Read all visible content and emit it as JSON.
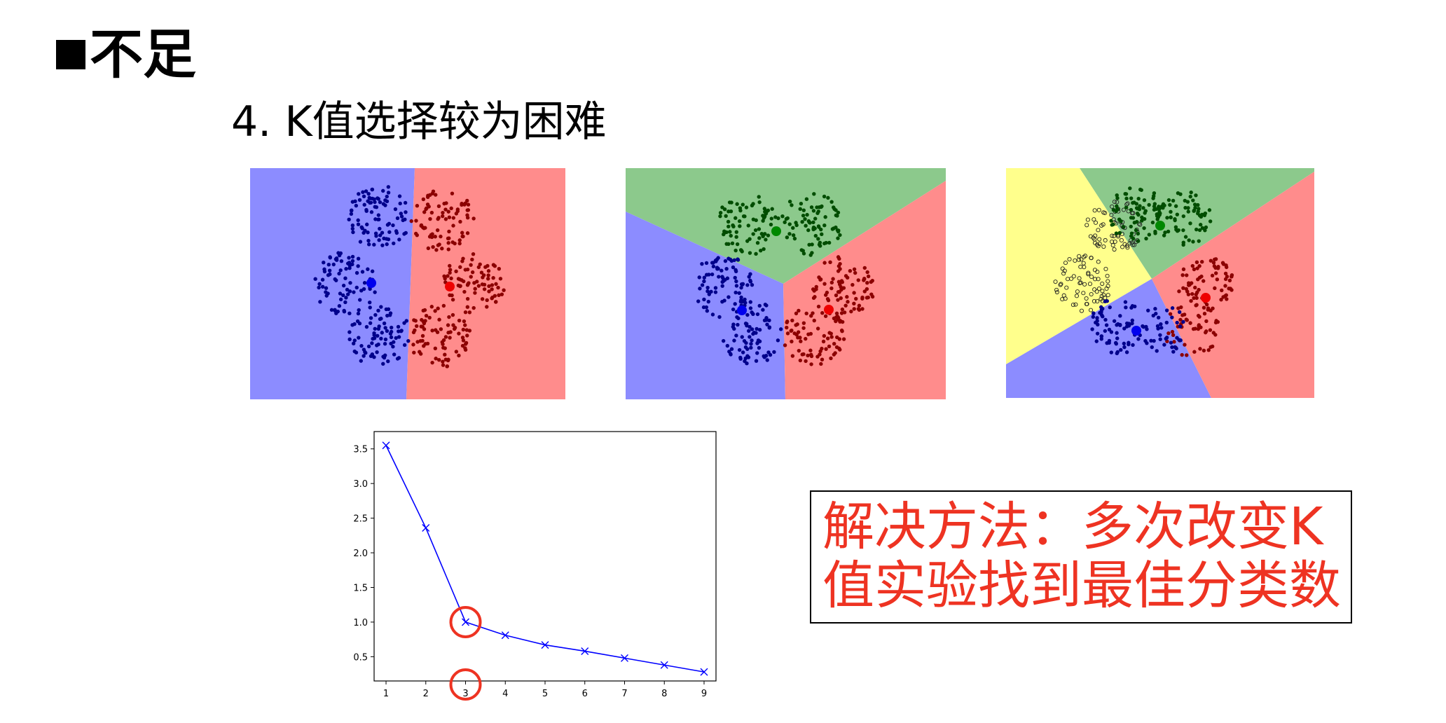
{
  "slide": {
    "heading": "不足",
    "subheading": "4. K值选择较为困难",
    "solution": {
      "line1": "解决方法：多次改变K",
      "line2": "值实验找到最佳分类数",
      "color": "#ee3322"
    }
  },
  "clusters": {
    "colors": {
      "blue_region": "#8c8cff",
      "red_region": "#ff8c8c",
      "green_region": "#8cc98c",
      "yellow_region": "#ffff8c",
      "blue_points": "#00008b",
      "red_points": "#8b0000",
      "green_points": "#004d00",
      "yellow_points": "#c8c800"
    },
    "panels": [
      "k=2",
      "k=3",
      "k=4"
    ]
  },
  "chart_data": {
    "type": "line",
    "x": [
      1,
      2,
      3,
      4,
      5,
      6,
      7,
      8,
      9
    ],
    "series": [
      {
        "values": [
          3.55,
          2.36,
          1.0,
          0.81,
          0.67,
          0.58,
          0.48,
          0.38,
          0.28
        ],
        "color": "#0000ff",
        "marker": "x"
      }
    ],
    "xticks": [
      "1",
      "2",
      "3",
      "4",
      "5",
      "6",
      "7",
      "8",
      "9"
    ],
    "yticks": [
      "0.5",
      "1.0",
      "1.5",
      "2.0",
      "2.5",
      "3.0",
      "3.5"
    ],
    "xlim": [
      0.7,
      9.3
    ],
    "ylim": [
      0.15,
      3.75
    ],
    "title": "",
    "xlabel": "",
    "ylabel": "",
    "annotations": [
      {
        "kind": "circle",
        "x": 3,
        "y": 1.0,
        "color": "#ee3322"
      },
      {
        "kind": "circle",
        "on": "x-axis-tick",
        "x": 3,
        "color": "#ee3322"
      }
    ]
  }
}
